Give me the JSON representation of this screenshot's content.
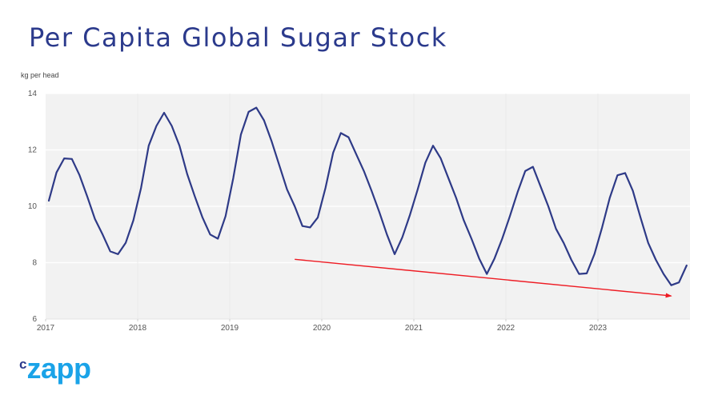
{
  "chart_data": {
    "type": "line",
    "title": "Per Capita Global Sugar Stock",
    "xlabel": "",
    "ylabel": "kg per head",
    "ylim": [
      6,
      14
    ],
    "yticks": [
      6,
      8,
      10,
      12,
      14
    ],
    "xticks": [
      "2017",
      "2018",
      "2019",
      "2020",
      "2021",
      "2022",
      "2023"
    ],
    "x_start": "2017-01",
    "frequency": "monthly",
    "grid": true,
    "series": [
      {
        "name": "Per capita sugar stock",
        "color": "#2e3a87",
        "values": [
          10.2,
          11.2,
          11.7,
          11.68,
          11.1,
          10.35,
          9.55,
          9.0,
          8.4,
          8.3,
          8.7,
          9.5,
          10.65,
          12.15,
          12.85,
          13.32,
          12.85,
          12.15,
          11.15,
          10.35,
          9.6,
          9.0,
          8.85,
          9.65,
          11.0,
          12.55,
          13.35,
          13.5,
          13.05,
          12.3,
          11.45,
          10.6,
          10.0,
          9.3,
          9.25,
          9.6,
          10.65,
          11.9,
          12.6,
          12.45,
          11.85,
          11.25,
          10.55,
          9.8,
          9.0,
          8.3,
          8.9,
          9.7,
          10.6,
          11.55,
          12.15,
          11.7,
          11.0,
          10.3,
          9.5,
          8.85,
          8.15,
          7.6,
          8.15,
          8.85,
          9.65,
          10.5,
          11.25,
          11.4,
          10.7,
          10.0,
          9.2,
          8.7,
          8.1,
          7.6,
          7.62,
          8.3,
          9.25,
          10.3,
          11.1,
          11.18,
          10.55,
          9.6,
          8.7,
          8.1,
          7.6,
          7.2,
          7.3,
          7.9
        ]
      }
    ],
    "annotations": [
      {
        "type": "trend-arrow",
        "color": "#ee1c24",
        "from": {
          "month_index": 32,
          "value": 8.12
        },
        "to": {
          "month_index": 81,
          "value": 6.82
        }
      }
    ]
  },
  "header": {
    "title": "Per Capita Global Sugar Stock",
    "y_axis_unit": "kg per head"
  },
  "branding": {
    "logo_prefix": "c",
    "logo_text": "zapp"
  }
}
